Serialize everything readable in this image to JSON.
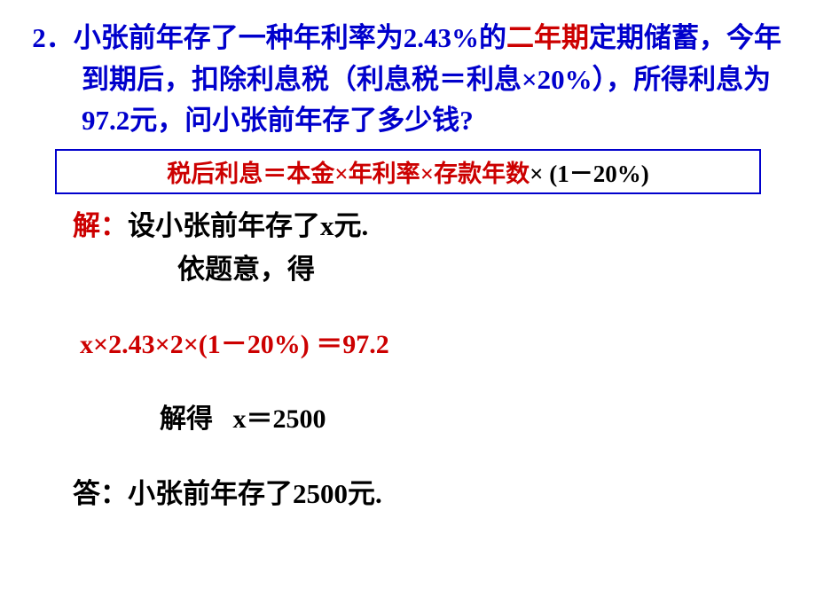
{
  "colors": {
    "blue": "#0000cc",
    "red": "#cc0000",
    "black": "#000000",
    "border": "#0000cc",
    "background": "#ffffff"
  },
  "typography": {
    "question_fontsize": 31,
    "formula_fontsize": 27,
    "body_fontsize": 31,
    "equation_fontsize": 30,
    "line_height": 1.5,
    "weight": "bold",
    "family_main": "SimSun",
    "family_math": "Times New Roman"
  },
  "question": {
    "number": "2．",
    "part1": "小张前年存了一种年利率为2.43%的",
    "highlight": "二年期",
    "part2": "定期储蓄，今年到期后，扣除利息税（利息税＝利息×20%），所得利息为97.2元，问小张前年存了多少钱?"
  },
  "formula": {
    "lhs": "税后利息＝本金",
    "times1": "×",
    "mid1": "年利率",
    "times2": "×",
    "mid2": "存款年数",
    "times3": "×",
    "rhs": " (1－20%)"
  },
  "solution": {
    "label": "解：",
    "line1": "设小张前年存了x元.",
    "line2": "依题意，得",
    "equation": "x×2.43×2×(1－20%) ＝97.2",
    "solve_label": "解得",
    "solve_result": "x＝2500",
    "answer": "答：小张前年存了2500元."
  }
}
